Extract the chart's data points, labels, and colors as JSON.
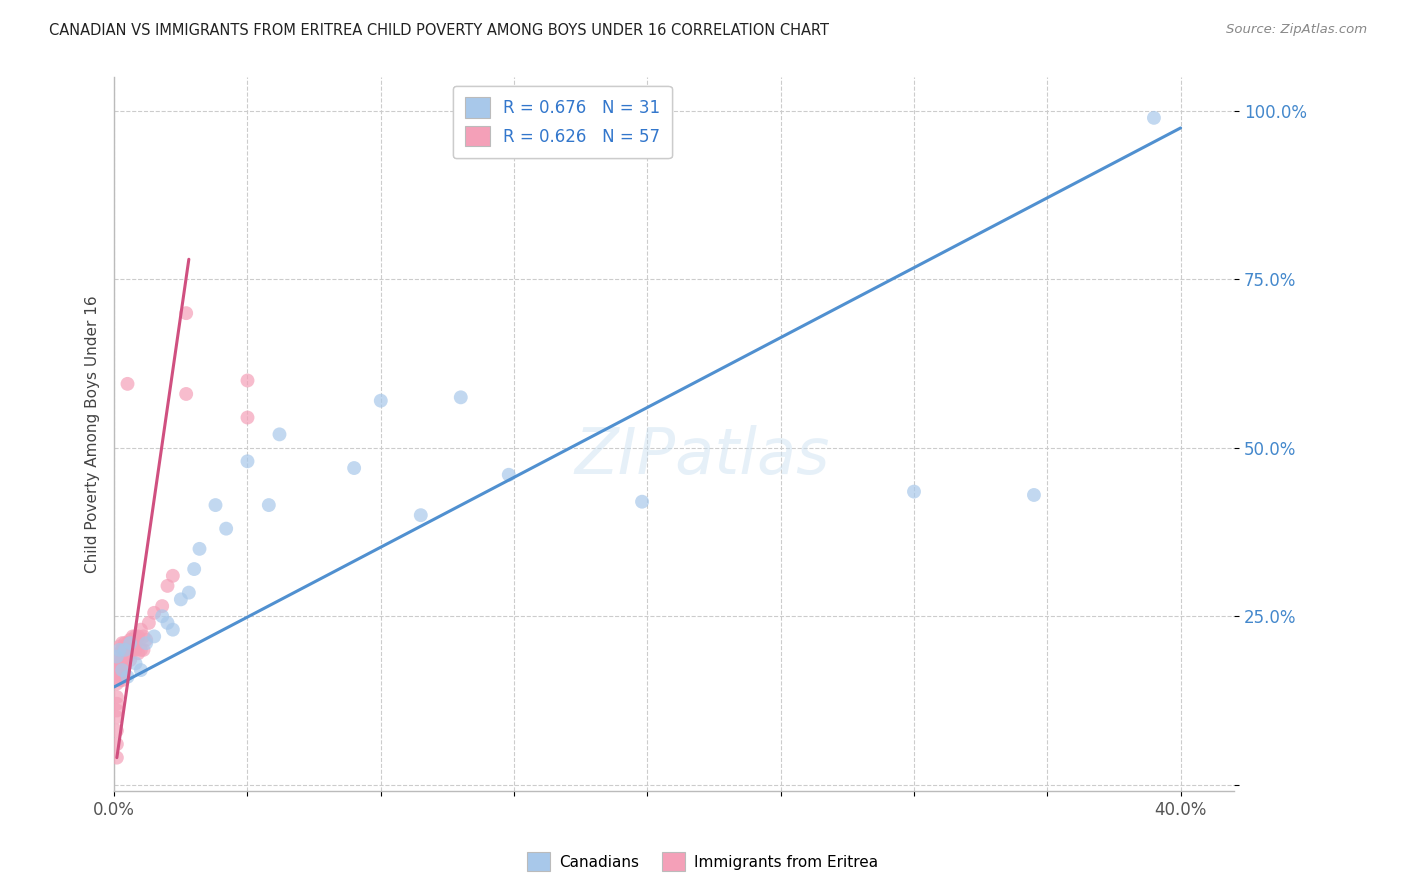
{
  "title": "CANADIAN VS IMMIGRANTS FROM ERITREA CHILD POVERTY AMONG BOYS UNDER 16 CORRELATION CHART",
  "source": "Source: ZipAtlas.com",
  "ylabel": "Child Poverty Among Boys Under 16",
  "xlim": [
    0.0,
    0.42
  ],
  "ylim": [
    -0.01,
    1.05
  ],
  "plot_xlim": [
    0.0,
    0.4
  ],
  "xtick_positions": [
    0.0,
    0.05,
    0.1,
    0.15,
    0.2,
    0.25,
    0.3,
    0.35,
    0.4
  ],
  "xtick_labels": [
    "0.0%",
    "",
    "",
    "",
    "",
    "",
    "",
    "",
    "40.0%"
  ],
  "ytick_positions": [
    0.0,
    0.25,
    0.5,
    0.75,
    1.0
  ],
  "ytick_labels": [
    "",
    "25.0%",
    "50.0%",
    "75.0%",
    "100.0%"
  ],
  "legend_blue_r": "0.676",
  "legend_blue_n": "31",
  "legend_pink_r": "0.626",
  "legend_pink_n": "57",
  "label_canadians": "Canadians",
  "label_eritrea": "Immigrants from Eritrea",
  "blue_scatter": "#a8c8ea",
  "pink_scatter": "#f4a0b8",
  "blue_line": "#5090d0",
  "pink_line": "#d05080",
  "watermark": "ZIPatlas",
  "canadians_x": [
    0.001,
    0.002,
    0.003,
    0.004,
    0.005,
    0.006,
    0.008,
    0.01,
    0.012,
    0.015,
    0.018,
    0.02,
    0.022,
    0.025,
    0.028,
    0.03,
    0.032,
    0.038,
    0.042,
    0.05,
    0.058,
    0.062,
    0.09,
    0.1,
    0.115,
    0.13,
    0.148,
    0.198,
    0.3,
    0.345,
    0.39
  ],
  "canadians_y": [
    0.19,
    0.2,
    0.17,
    0.2,
    0.16,
    0.21,
    0.18,
    0.17,
    0.21,
    0.22,
    0.25,
    0.24,
    0.23,
    0.275,
    0.285,
    0.32,
    0.35,
    0.415,
    0.38,
    0.48,
    0.415,
    0.52,
    0.47,
    0.57,
    0.4,
    0.575,
    0.46,
    0.42,
    0.435,
    0.43,
    0.99
  ],
  "eritrea_x": [
    0.001,
    0.001,
    0.001,
    0.001,
    0.001,
    0.001,
    0.001,
    0.001,
    0.001,
    0.001,
    0.001,
    0.002,
    0.002,
    0.002,
    0.002,
    0.002,
    0.002,
    0.003,
    0.003,
    0.003,
    0.003,
    0.003,
    0.003,
    0.004,
    0.004,
    0.004,
    0.004,
    0.005,
    0.005,
    0.005,
    0.005,
    0.006,
    0.006,
    0.006,
    0.006,
    0.007,
    0.007,
    0.007,
    0.008,
    0.008,
    0.008,
    0.009,
    0.009,
    0.01,
    0.01,
    0.011,
    0.011,
    0.012,
    0.013,
    0.015,
    0.018,
    0.02,
    0.022,
    0.027,
    0.027,
    0.05,
    0.05
  ],
  "eritrea_y": [
    0.04,
    0.06,
    0.08,
    0.1,
    0.11,
    0.12,
    0.13,
    0.15,
    0.165,
    0.17,
    0.18,
    0.155,
    0.165,
    0.175,
    0.185,
    0.195,
    0.205,
    0.155,
    0.165,
    0.175,
    0.185,
    0.2,
    0.21,
    0.175,
    0.19,
    0.2,
    0.21,
    0.19,
    0.2,
    0.21,
    0.595,
    0.185,
    0.2,
    0.205,
    0.215,
    0.2,
    0.21,
    0.22,
    0.2,
    0.21,
    0.22,
    0.195,
    0.22,
    0.2,
    0.23,
    0.2,
    0.22,
    0.215,
    0.24,
    0.255,
    0.265,
    0.295,
    0.31,
    0.58,
    0.7,
    0.545,
    0.6
  ],
  "blue_trend_x": [
    0.0,
    0.4
  ],
  "blue_trend_y": [
    0.145,
    0.975
  ],
  "pink_trend_x": [
    0.001,
    0.028
  ],
  "pink_trend_y": [
    0.04,
    0.78
  ]
}
